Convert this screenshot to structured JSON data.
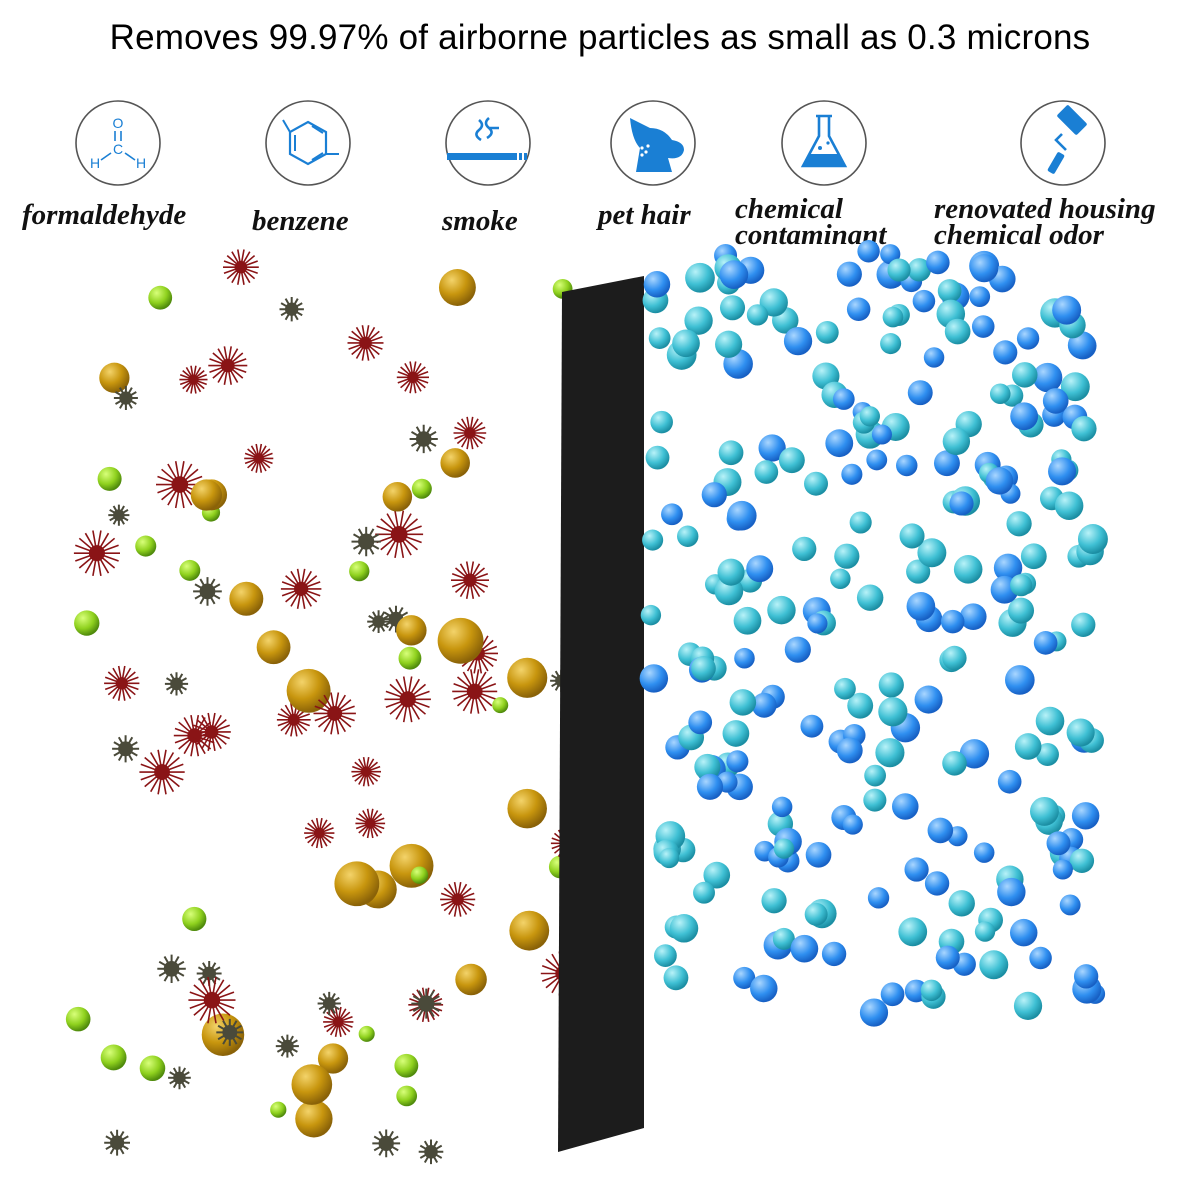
{
  "headline": "Removes 99.97% of airborne particles as small as 0.3 microns",
  "icons": [
    {
      "name": "formaldehyde-molecule-icon",
      "label": "formaldehyde",
      "glyph_o": "O",
      "glyph_c": "C",
      "glyph_h": "H"
    },
    {
      "name": "benzene-ring-icon",
      "label": "benzene"
    },
    {
      "name": "cigarette-smoke-icon",
      "label": "smoke"
    },
    {
      "name": "dog-head-icon",
      "label": "pet hair"
    },
    {
      "name": "flask-icon",
      "label_line1": "chemical",
      "label_line2": "contaminant"
    },
    {
      "name": "paint-roller-icon",
      "label_line1": "renovated housing",
      "label_line2": "chemical odor"
    }
  ],
  "colors": {
    "icon_blue": "#1a7fd4",
    "icon_ring": "#555555",
    "filter": "#1c1c1c",
    "particle_gold": "#c8960e",
    "particle_green": "#8fd11e",
    "particle_red": "#8a1416",
    "particle_dark": "#4a4a3a",
    "clean_cyan": "#3fc0d4",
    "clean_blue": "#2f8ff0"
  }
}
